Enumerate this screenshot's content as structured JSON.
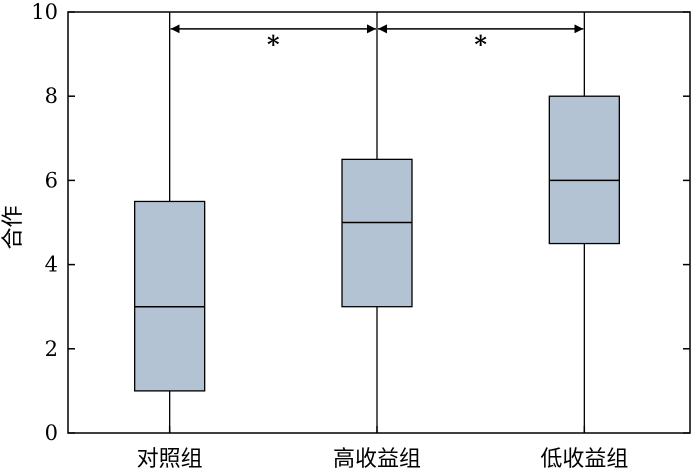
{
  "chart_data": {
    "type": "box",
    "ylabel": "合作",
    "ylim": [
      0,
      10
    ],
    "yticks": [
      0,
      2,
      4,
      6,
      8,
      10
    ],
    "ytick_labels": [
      "0",
      "2",
      "4",
      "6",
      "8",
      "10"
    ],
    "categories": [
      "对照组",
      "高收益组",
      "低收益组"
    ],
    "boxes": [
      {
        "category": "对照组",
        "min": 0,
        "q1": 1,
        "median": 3,
        "q3": 5.5,
        "max": 10
      },
      {
        "category": "高收益组",
        "min": 0,
        "q1": 3,
        "median": 5,
        "q3": 6.5,
        "max": 10
      },
      {
        "category": "低收益组",
        "min": 0,
        "q1": 4.5,
        "median": 6,
        "q3": 8,
        "max": 10
      }
    ],
    "significance": [
      {
        "from": 0,
        "to": 1,
        "y": 9.6,
        "label": "*"
      },
      {
        "from": 1,
        "to": 2,
        "y": 9.6,
        "label": "*"
      }
    ],
    "box_color": "#b3c3d3",
    "grid": false
  }
}
